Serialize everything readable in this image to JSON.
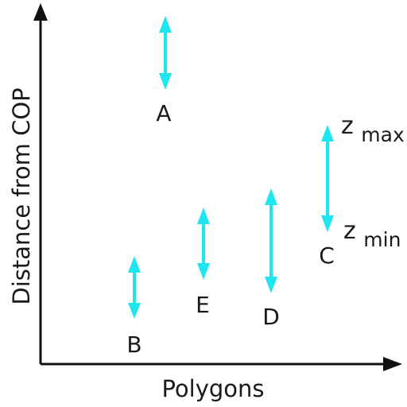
{
  "colors": {
    "axis": "#111111",
    "arrow": "#1ee6ee",
    "text": "#1a1a1a"
  },
  "axes": {
    "y_label": "Distance from COP",
    "x_label": "Polygons"
  },
  "range_labels": {
    "max_base": "z",
    "max_sub": "max",
    "min_base": "z",
    "min_sub": "min"
  },
  "polygons": [
    {
      "id": "A",
      "label": "A"
    },
    {
      "id": "B",
      "label": "B"
    },
    {
      "id": "E",
      "label": "E"
    },
    {
      "id": "D",
      "label": "D"
    },
    {
      "id": "C",
      "label": "C"
    }
  ]
}
